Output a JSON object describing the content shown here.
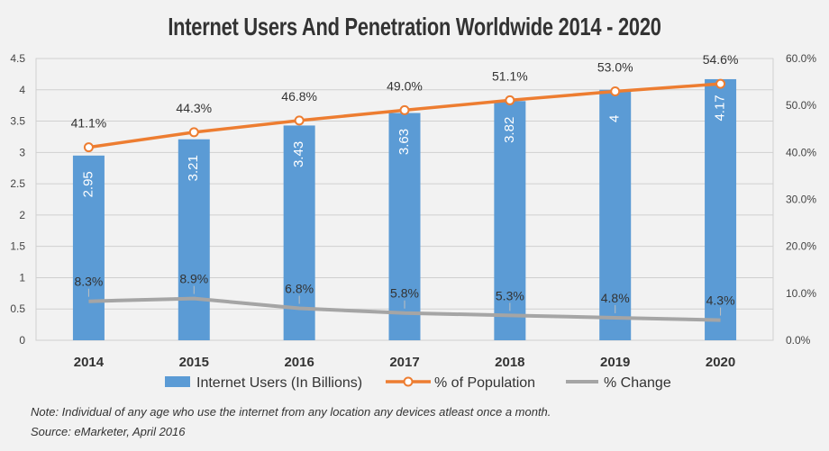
{
  "title": "Internet Users And Penetration Worldwide 2014 - 2020",
  "notes": {
    "line1": "Note: Individual of any age who use the internet from any location any devices atleast once a month.",
    "line2": "Source: eMarketer, April 2016"
  },
  "chart_data": {
    "type": "bar",
    "categories": [
      "2014",
      "2015",
      "2016",
      "2017",
      "2018",
      "2019",
      "2020"
    ],
    "left_axis": {
      "ylim": [
        0,
        4.5
      ],
      "ticks": [
        "0",
        "0.5",
        "1",
        "1.5",
        "2",
        "2.5",
        "3",
        "3.5",
        "4",
        "4.5"
      ]
    },
    "right_axis": {
      "ylim": [
        0,
        60
      ],
      "ticks": [
        "0.0%",
        "10.0%",
        "20.0%",
        "30.0%",
        "40.0%",
        "50.0%",
        "60.0%"
      ]
    },
    "grid": true,
    "legend_position": "bottom",
    "series": [
      {
        "name": "Internet Users (In Billions)",
        "type": "bar",
        "axis": "left",
        "color": "#5b9bd5",
        "values": [
          2.95,
          3.21,
          3.43,
          3.63,
          3.82,
          4.0,
          4.17
        ],
        "labels": [
          "2.95",
          "3.21",
          "3.43",
          "3.63",
          "3.82",
          "4",
          "4.17"
        ]
      },
      {
        "name": "% of Population",
        "type": "line",
        "axis": "right",
        "color": "#ed7d31",
        "values": [
          41.1,
          44.3,
          46.8,
          49.0,
          51.1,
          53.0,
          54.6
        ],
        "labels": [
          "41.1%",
          "44.3%",
          "46.8%",
          "49.0%",
          "51.1%",
          "53.0%",
          "54.6%"
        ]
      },
      {
        "name": "% Change",
        "type": "line",
        "axis": "right",
        "color": "#a5a5a5",
        "values": [
          8.3,
          8.9,
          6.8,
          5.8,
          5.3,
          4.8,
          4.3
        ],
        "labels": [
          "8.3%",
          "8.9%",
          "6.8%",
          "5.8%",
          "5.3%",
          "4.8%",
          "4.3%"
        ]
      }
    ]
  }
}
